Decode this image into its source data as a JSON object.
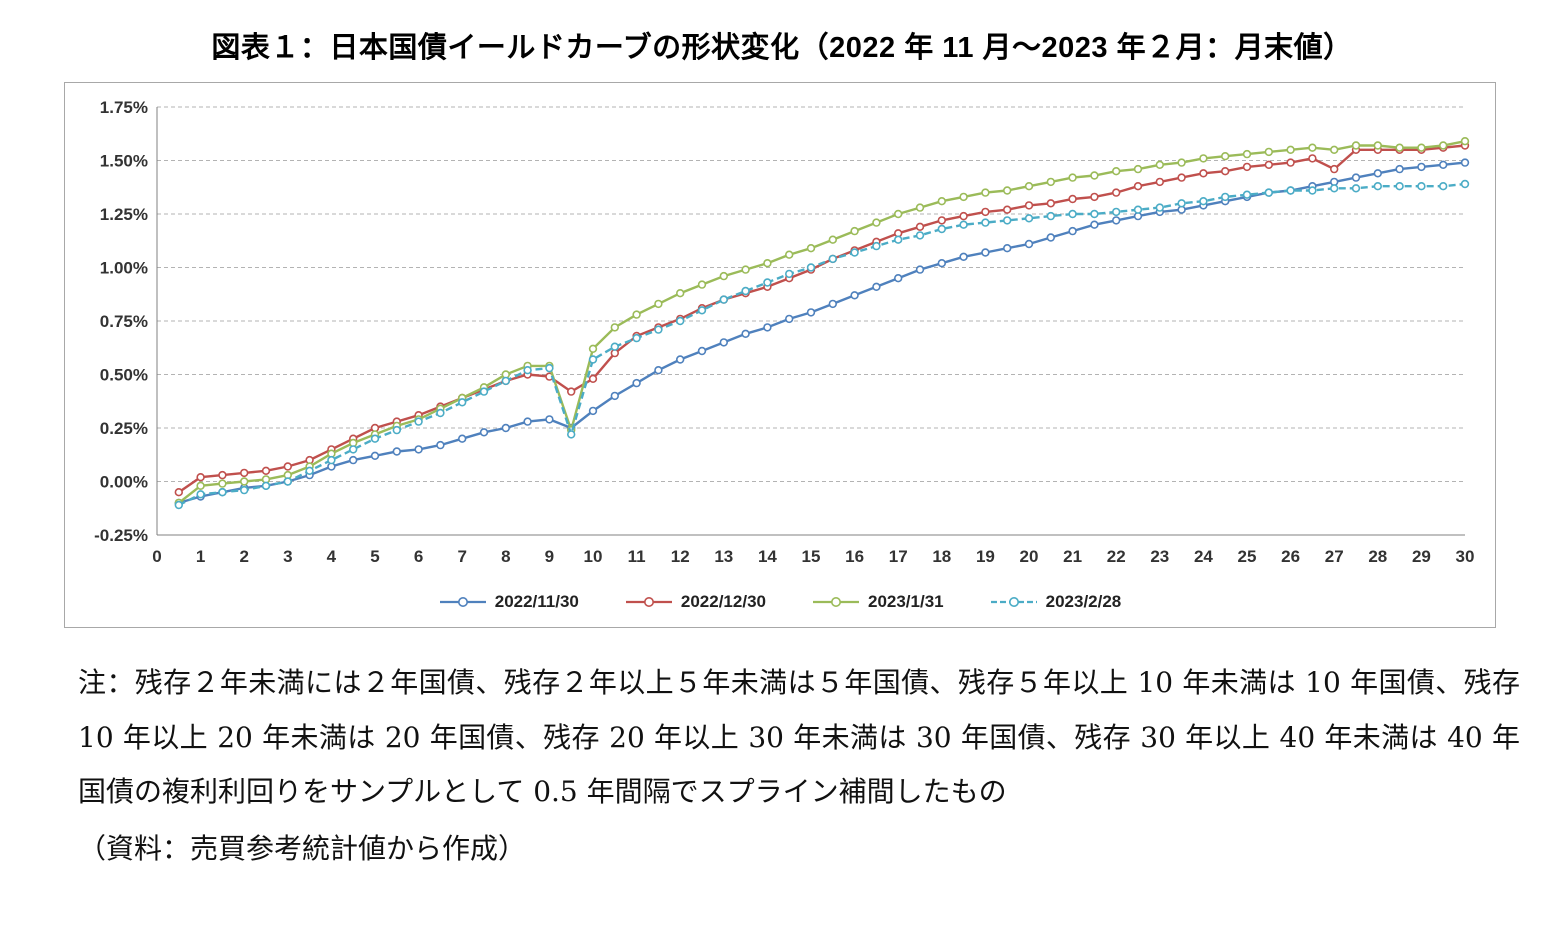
{
  "title": "図表１：日本国債イールドカーブの形状変化（2022 年 11 月～2023 年２月：月末値）",
  "notes": {
    "body": "注：残存２年未満には２年国債、残存２年以上５年未満は５年国債、残存５年以上 10 年未満は 10 年国債、残存 10 年以上 20 年未満は 20 年国債、残存 20 年以上 30 年未満は 30 年国債、残存 30 年以上 40 年未満は 40 年国債の複利利回りをサンプルとして 0.5 年間隔でスプライン補間したもの",
    "source": "（資料：売買参考統計値から作成）"
  },
  "chart_data": {
    "type": "line",
    "title": "",
    "xlabel": "",
    "ylabel": "",
    "xlim": [
      0,
      30
    ],
    "ylim": [
      -0.25,
      1.75
    ],
    "y_tick_step": 0.25,
    "y_tick_format": "0.00%",
    "x_ticks": [
      0,
      1,
      2,
      3,
      4,
      5,
      6,
      7,
      8,
      9,
      10,
      11,
      12,
      13,
      14,
      15,
      16,
      17,
      18,
      19,
      20,
      21,
      22,
      23,
      24,
      25,
      26,
      27,
      28,
      29,
      30
    ],
    "grid": "horizontal-dashed",
    "legend_position": "bottom",
    "x": [
      0.5,
      1,
      1.5,
      2,
      2.5,
      3,
      3.5,
      4,
      4.5,
      5,
      5.5,
      6,
      6.5,
      7,
      7.5,
      8,
      8.5,
      9,
      9.5,
      10,
      10.5,
      11,
      11.5,
      12,
      12.5,
      13,
      13.5,
      14,
      14.5,
      15,
      15.5,
      16,
      16.5,
      17,
      17.5,
      18,
      18.5,
      19,
      19.5,
      20,
      20.5,
      21,
      21.5,
      22,
      22.5,
      23,
      23.5,
      24,
      24.5,
      25,
      25.5,
      26,
      26.5,
      27,
      27.5,
      28,
      28.5,
      29,
      29.5,
      30
    ],
    "series": [
      {
        "name": "2022/11/30",
        "color": "#4F81BD",
        "dashed": false,
        "marker": "circle",
        "values": [
          -0.1,
          -0.07,
          -0.05,
          -0.03,
          -0.02,
          0.0,
          0.03,
          0.07,
          0.1,
          0.12,
          0.14,
          0.15,
          0.17,
          0.2,
          0.23,
          0.25,
          0.28,
          0.29,
          0.25,
          0.33,
          0.4,
          0.46,
          0.52,
          0.57,
          0.61,
          0.65,
          0.69,
          0.72,
          0.76,
          0.79,
          0.83,
          0.87,
          0.91,
          0.95,
          0.99,
          1.02,
          1.05,
          1.07,
          1.09,
          1.11,
          1.14,
          1.17,
          1.2,
          1.22,
          1.24,
          1.26,
          1.27,
          1.29,
          1.31,
          1.33,
          1.35,
          1.36,
          1.38,
          1.4,
          1.42,
          1.44,
          1.46,
          1.47,
          1.48,
          1.49
        ]
      },
      {
        "name": "2022/12/30",
        "color": "#C0504D",
        "dashed": false,
        "marker": "circle",
        "values": [
          -0.05,
          0.02,
          0.03,
          0.04,
          0.05,
          0.07,
          0.1,
          0.15,
          0.2,
          0.25,
          0.28,
          0.31,
          0.35,
          0.39,
          0.43,
          0.47,
          0.5,
          0.49,
          0.42,
          0.48,
          0.6,
          0.68,
          0.72,
          0.76,
          0.81,
          0.85,
          0.88,
          0.91,
          0.95,
          0.99,
          1.04,
          1.08,
          1.12,
          1.16,
          1.19,
          1.22,
          1.24,
          1.26,
          1.27,
          1.29,
          1.3,
          1.32,
          1.33,
          1.35,
          1.38,
          1.4,
          1.42,
          1.44,
          1.45,
          1.47,
          1.48,
          1.49,
          1.51,
          1.46,
          1.55,
          1.55,
          1.55,
          1.55,
          1.56,
          1.57
        ]
      },
      {
        "name": "2023/1/31",
        "color": "#9BBB59",
        "dashed": false,
        "marker": "circle",
        "values": [
          -0.1,
          -0.02,
          -0.01,
          0.0,
          0.01,
          0.03,
          0.07,
          0.13,
          0.18,
          0.22,
          0.26,
          0.29,
          0.34,
          0.39,
          0.44,
          0.5,
          0.54,
          0.54,
          0.24,
          0.62,
          0.72,
          0.78,
          0.83,
          0.88,
          0.92,
          0.96,
          0.99,
          1.02,
          1.06,
          1.09,
          1.13,
          1.17,
          1.21,
          1.25,
          1.28,
          1.31,
          1.33,
          1.35,
          1.36,
          1.38,
          1.4,
          1.42,
          1.43,
          1.45,
          1.46,
          1.48,
          1.49,
          1.51,
          1.52,
          1.53,
          1.54,
          1.55,
          1.56,
          1.55,
          1.57,
          1.57,
          1.56,
          1.56,
          1.57,
          1.59
        ]
      },
      {
        "name": "2023/2/28",
        "color": "#4BACC6",
        "dashed": true,
        "marker": "circle",
        "values": [
          -0.11,
          -0.06,
          -0.05,
          -0.04,
          -0.02,
          0.0,
          0.05,
          0.1,
          0.15,
          0.2,
          0.24,
          0.28,
          0.32,
          0.37,
          0.42,
          0.47,
          0.52,
          0.53,
          0.22,
          0.57,
          0.63,
          0.67,
          0.71,
          0.75,
          0.8,
          0.85,
          0.89,
          0.93,
          0.97,
          1.0,
          1.04,
          1.07,
          1.1,
          1.13,
          1.15,
          1.18,
          1.2,
          1.21,
          1.22,
          1.23,
          1.24,
          1.25,
          1.25,
          1.26,
          1.27,
          1.28,
          1.3,
          1.31,
          1.33,
          1.34,
          1.35,
          1.36,
          1.36,
          1.37,
          1.37,
          1.38,
          1.38,
          1.38,
          1.38,
          1.39
        ]
      }
    ]
  }
}
